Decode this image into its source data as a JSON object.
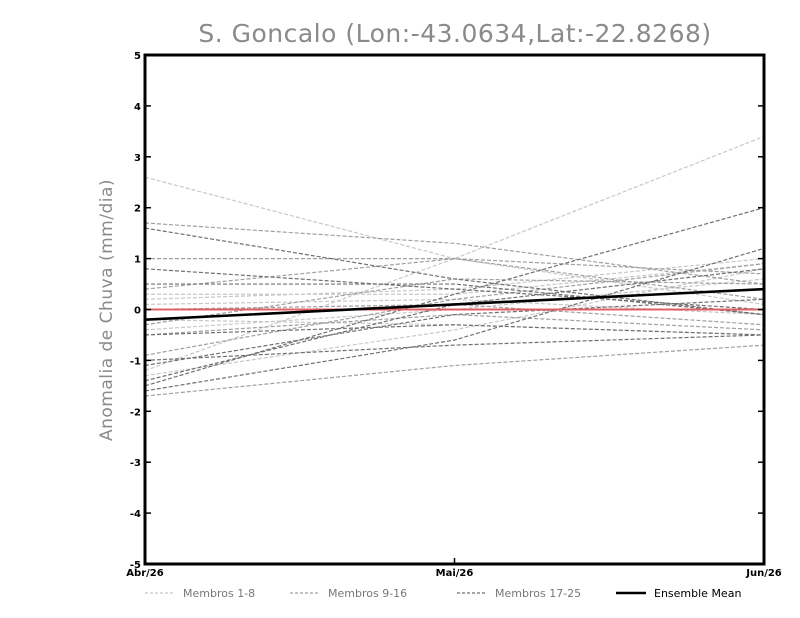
{
  "chart_data": {
    "type": "line",
    "title": "S. Goncalo (Lon:-43.0634,Lat:-22.8268)",
    "ylabel": "Anomalia de Chuva (mm/dia)",
    "xlabel": "",
    "x": [
      "Abr/26",
      "Mai/26",
      "Jun/26"
    ],
    "ylim": [
      -5,
      5
    ],
    "yticks": [
      "-5",
      "-4",
      "-3",
      "-2",
      "-1",
      "0",
      "1",
      "2",
      "3",
      "4",
      "5"
    ],
    "grid": false,
    "zero_line_color": "#e06060",
    "legend": [
      {
        "label": "Membros 1-8",
        "color": "#c8c8c8",
        "style": "dashed"
      },
      {
        "label": "Membros 9-16",
        "color": "#a0a0a0",
        "style": "dashed"
      },
      {
        "label": "Membros 17-25",
        "color": "#707070",
        "style": "dashed"
      },
      {
        "label": "Ensemble Mean",
        "color": "#000000",
        "style": "solid"
      }
    ],
    "series": [
      {
        "group": 0,
        "values": [
          2.6,
          1.0,
          0.1
        ]
      },
      {
        "group": 0,
        "values": [
          -1.2,
          1.0,
          3.4
        ]
      },
      {
        "group": 0,
        "values": [
          0.2,
          0.4,
          1.0
        ]
      },
      {
        "group": 0,
        "values": [
          -0.4,
          0.0,
          0.6
        ]
      },
      {
        "group": 0,
        "values": [
          -0.2,
          -0.3,
          -0.5
        ]
      },
      {
        "group": 0,
        "values": [
          0.3,
          0.3,
          0.9
        ]
      },
      {
        "group": 0,
        "values": [
          -1.3,
          -0.4,
          0.8
        ]
      },
      {
        "group": 0,
        "values": [
          0.1,
          0.2,
          -0.1
        ]
      },
      {
        "group": 1,
        "values": [
          1.7,
          1.3,
          0.5
        ]
      },
      {
        "group": 1,
        "values": [
          1.0,
          1.0,
          0.7
        ]
      },
      {
        "group": 1,
        "values": [
          0.4,
          1.0,
          0.2
        ]
      },
      {
        "group": 1,
        "values": [
          -0.9,
          0.2,
          0.9
        ]
      },
      {
        "group": 1,
        "values": [
          -1.7,
          -1.1,
          -0.7
        ]
      },
      {
        "group": 1,
        "values": [
          0.0,
          0.1,
          -0.3
        ]
      },
      {
        "group": 1,
        "values": [
          -0.3,
          0.6,
          0.5
        ]
      },
      {
        "group": 1,
        "values": [
          -0.5,
          -0.1,
          -0.4
        ]
      },
      {
        "group": 2,
        "values": [
          1.6,
          0.6,
          -0.1
        ]
      },
      {
        "group": 2,
        "values": [
          -1.5,
          0.3,
          2.0
        ]
      },
      {
        "group": 2,
        "values": [
          -1.6,
          -0.6,
          1.2
        ]
      },
      {
        "group": 2,
        "values": [
          0.8,
          0.4,
          0.0
        ]
      },
      {
        "group": 2,
        "values": [
          -1.0,
          -0.7,
          -0.5
        ]
      },
      {
        "group": 2,
        "values": [
          -1.4,
          0.1,
          0.8
        ]
      },
      {
        "group": 2,
        "values": [
          0.5,
          0.5,
          -0.1
        ]
      },
      {
        "group": 2,
        "values": [
          -0.5,
          -0.3,
          -0.5
        ]
      },
      {
        "group": 2,
        "values": [
          -1.1,
          -0.1,
          0.2
        ]
      }
    ],
    "mean": {
      "name": "Ensemble Mean",
      "values": [
        -0.2,
        0.1,
        0.4
      ]
    }
  }
}
